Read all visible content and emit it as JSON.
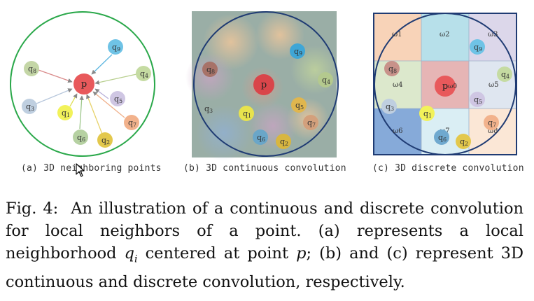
{
  "subcaptions": {
    "a": "(a) 3D neighboring points",
    "b": "(b) 3D continuous convolution",
    "c": "(c) 3D discrete convolution"
  },
  "caption": {
    "label": "Fig. 4:",
    "t1": "An illustration of a continuous and discrete convolution for local neighbors of a point. (a) represents a local neighborhood",
    "q": "q",
    "i": "i",
    "t2": "centered at point",
    "p": "p",
    "t3": "; (b) and (c) represent 3D continuous and discrete convolution, respectively."
  },
  "points": {
    "p": "p",
    "q1": "q",
    "s1": "1",
    "q2": "q",
    "s2": "2",
    "q3": "q",
    "s3": "3",
    "q4": "q",
    "s4": "4",
    "q5": "q",
    "s5": "5",
    "q6": "q",
    "s6": "6",
    "q7": "q",
    "s7": "7",
    "q8": "q",
    "s8": "8",
    "q9": "q",
    "s9": "9"
  },
  "kernel_weights": {
    "w0": "ω0",
    "w1": "ω1",
    "w2": "ω2",
    "w3": "ω3",
    "w4": "ω4",
    "w5": "ω5",
    "w6": "ω6",
    "w7": "ω7",
    "w8": "ω8"
  },
  "colors": {
    "p": "#e8595b",
    "q1": "#f2f25a",
    "q2": "#e3c84c",
    "q3": "#bfcfe0",
    "q4": "#c5dba2",
    "q5": "#cfc6e3",
    "q6": "#b6d1a2",
    "q7": "#f2b28c",
    "q8": "#c4d6a6",
    "q9": "#6fc3e6",
    "panel_a_circle": "#2aa84a",
    "panel_bc_circle": "#1f3b73"
  }
}
